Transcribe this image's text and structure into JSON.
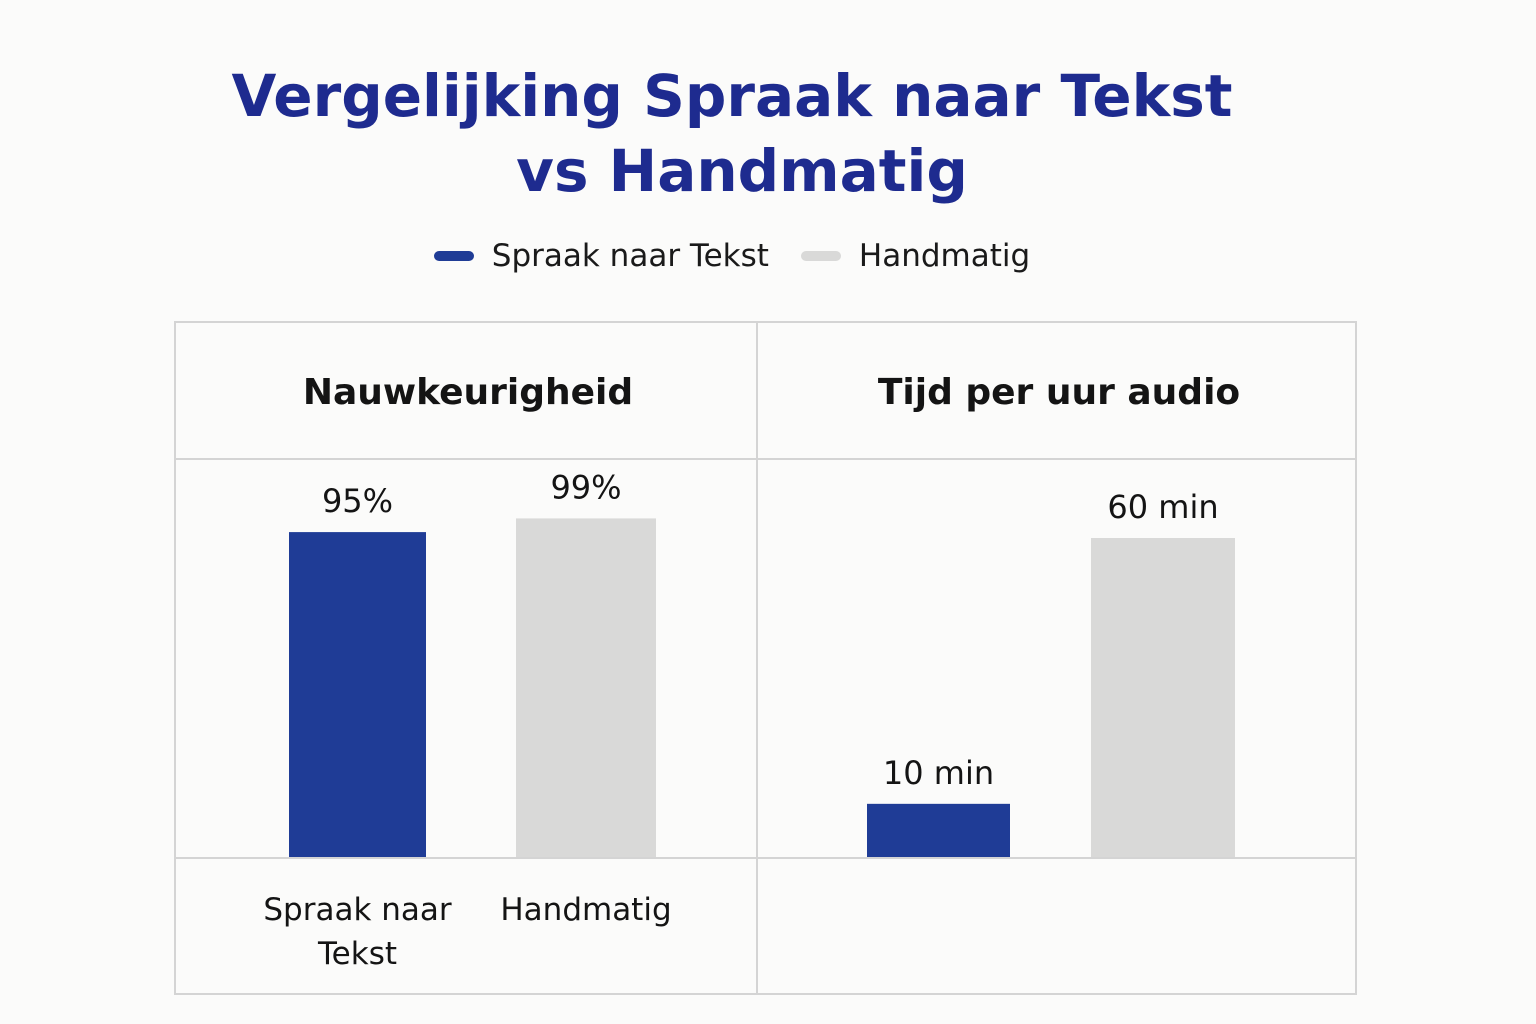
{
  "title": {
    "line1": "Vergelijking Spraak naar Tekst",
    "line2": "vs Handmatig"
  },
  "legend": [
    {
      "label": "Spraak naar Tekst",
      "color": "#1f3c96"
    },
    {
      "label": "Handmatig",
      "color": "#d9d9d8"
    }
  ],
  "chart_data": [
    {
      "type": "bar",
      "title": "Nauwkeurigheid",
      "categories": [
        "Spraak naar Tekst",
        "Handmatig"
      ],
      "category_labels": [
        [
          "Spraak naar",
          "Tekst"
        ],
        [
          "Handmatig"
        ]
      ],
      "values": [
        95,
        99
      ],
      "value_labels": [
        "95%",
        "99%"
      ],
      "colors": [
        "#1f3c96",
        "#d9d9d8"
      ],
      "ylim": [
        0,
        100
      ]
    },
    {
      "type": "bar",
      "title": "Tijd per uur audio",
      "categories": [
        "Spraak naar Tekst",
        "Handmatig"
      ],
      "values": [
        10,
        60
      ],
      "value_labels": [
        "10 min",
        "60 min"
      ],
      "colors": [
        "#1f3c96",
        "#d9d9d8"
      ],
      "ylim": [
        0,
        60
      ]
    }
  ]
}
